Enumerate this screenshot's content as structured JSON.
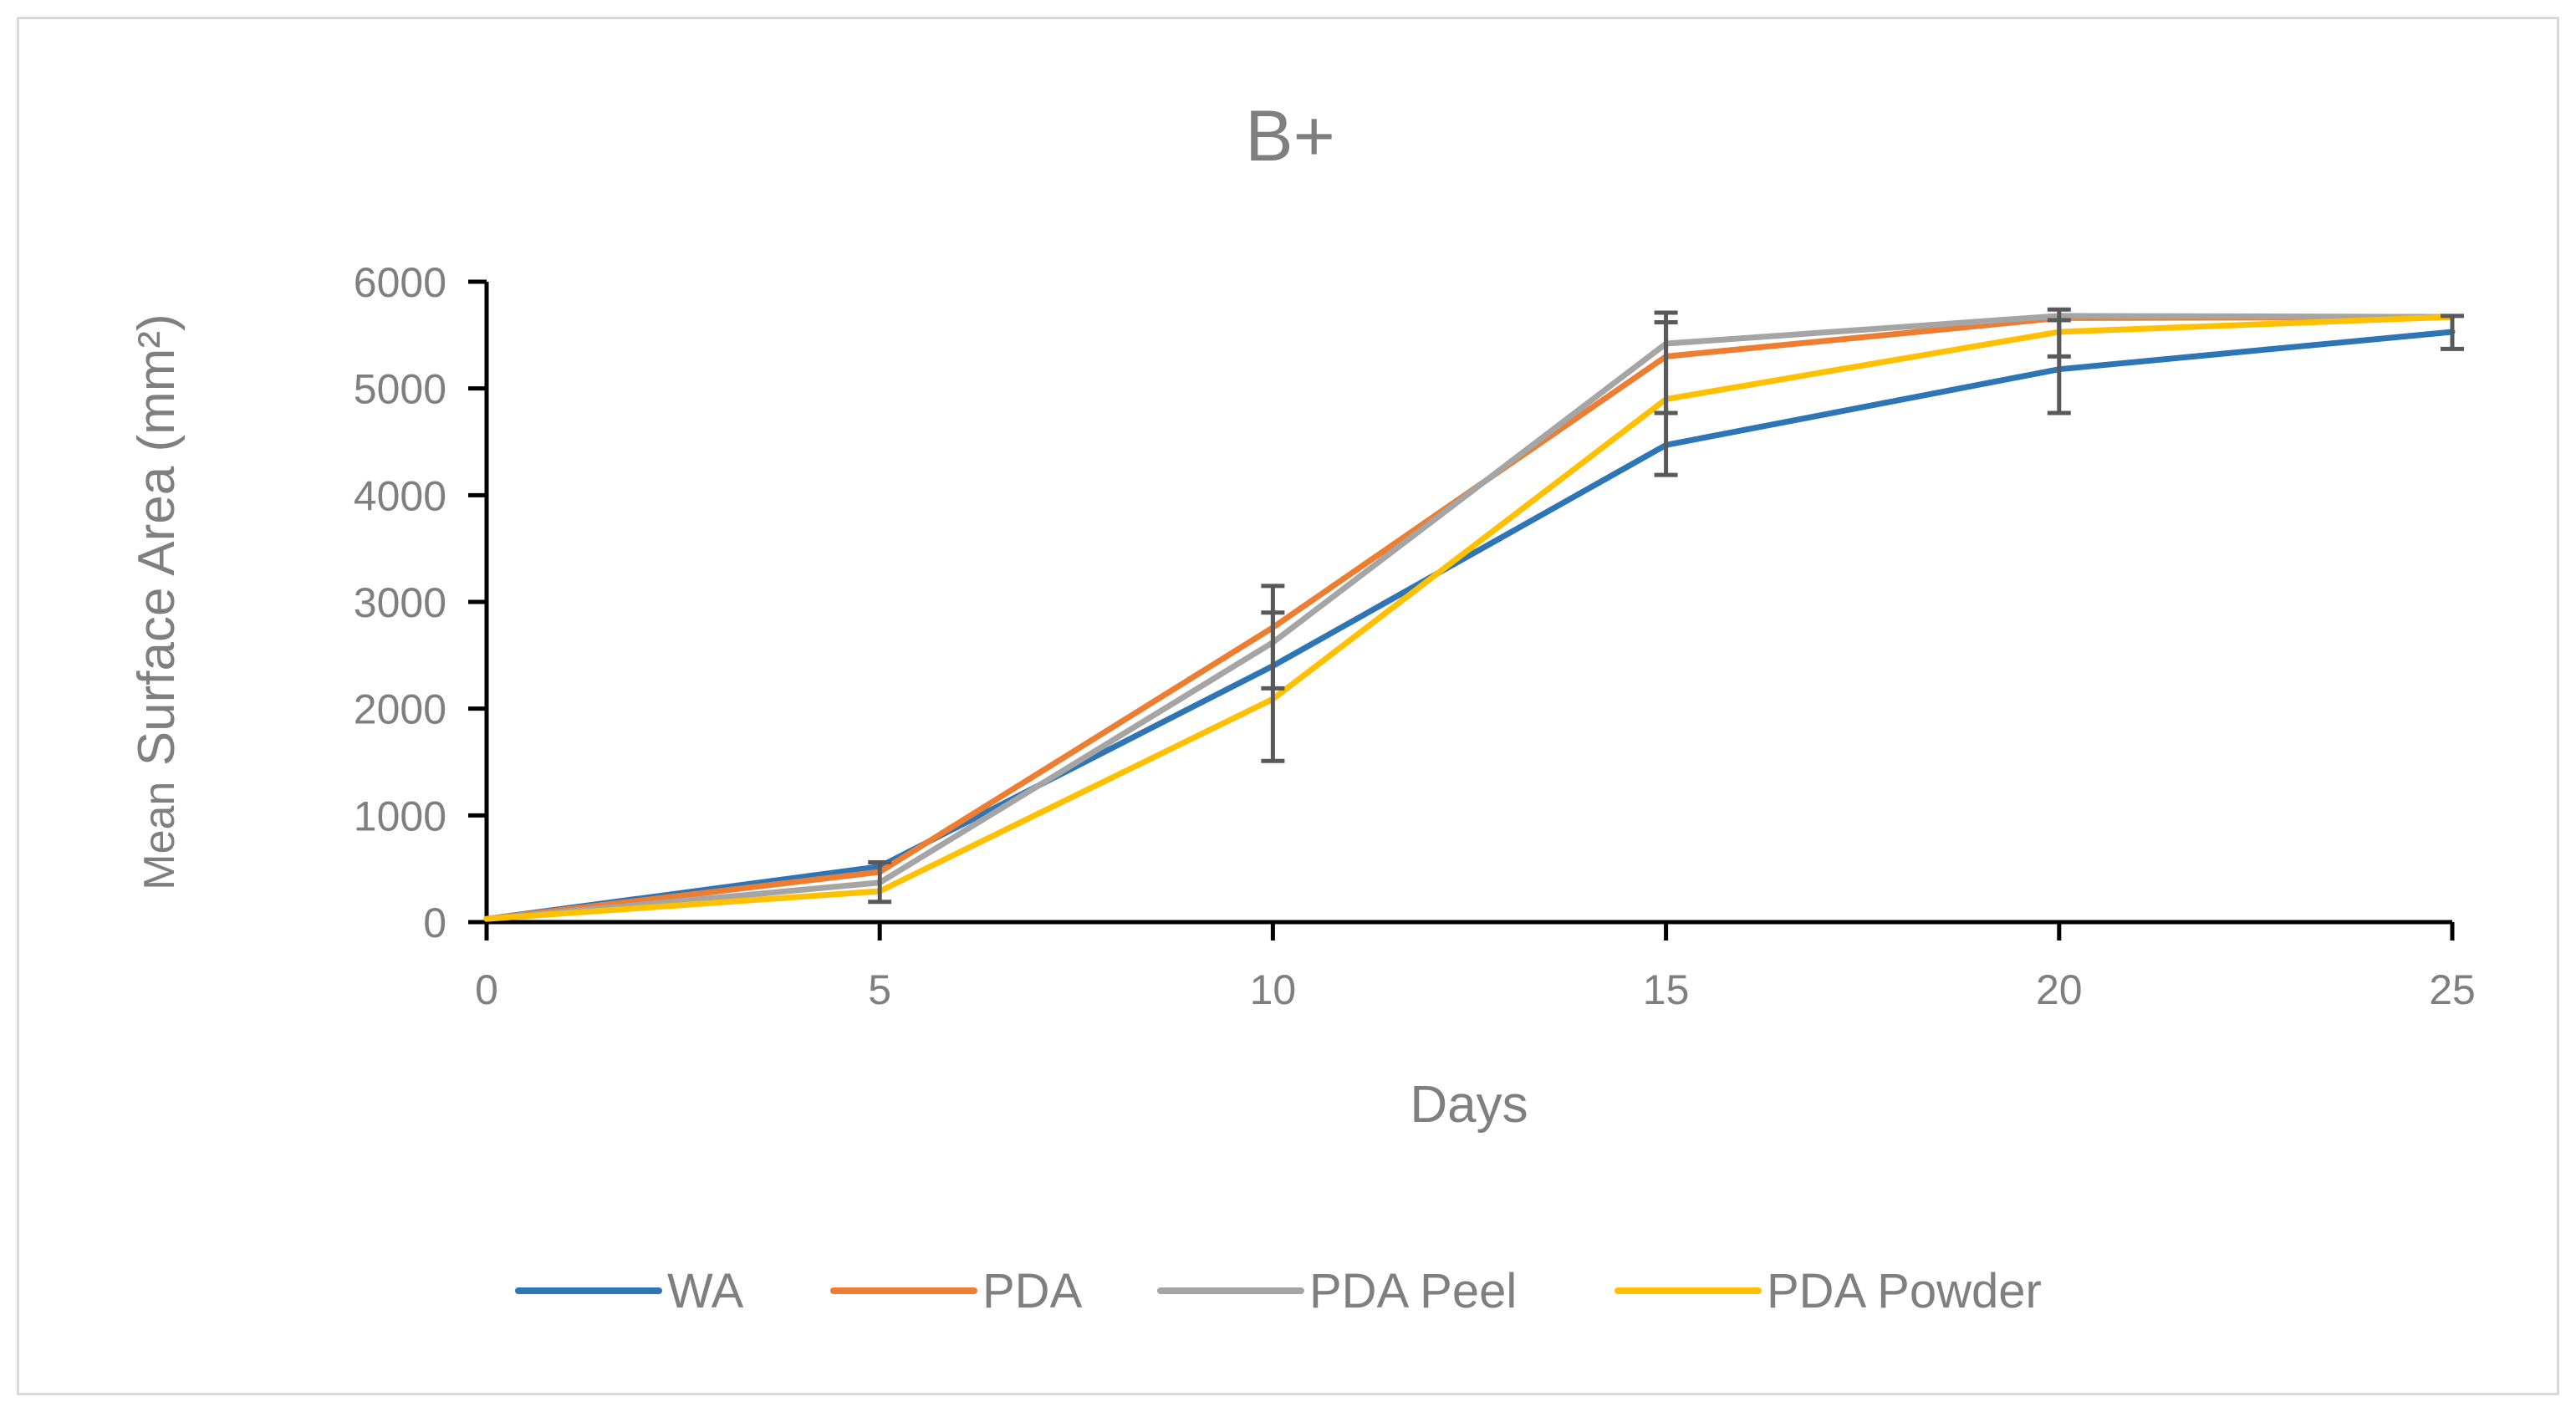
{
  "chart_data": {
    "type": "line",
    "title": "B+",
    "xlabel": "Days",
    "ylabel_prefix": "Mean",
    "ylabel_main": "Surface Area (mm²)",
    "x": [
      0,
      5,
      10,
      15,
      20,
      25
    ],
    "xlim": [
      0,
      25
    ],
    "ylim": [
      0,
      6000
    ],
    "xticks": [
      0,
      5,
      10,
      15,
      20,
      25
    ],
    "yticks": [
      0,
      1000,
      2000,
      3000,
      4000,
      5000,
      6000
    ],
    "grid": false,
    "legend_position": "bottom",
    "series": [
      {
        "name": "WA",
        "color": "#2e75b6",
        "values": [
          30,
          520,
          2400,
          4470,
          5180,
          5530
        ]
      },
      {
        "name": "PDA",
        "color": "#ed7d31",
        "values": [
          30,
          470,
          2760,
          5300,
          5660,
          5670
        ]
      },
      {
        "name": "PDA Peel",
        "color": "#a5a5a5",
        "values": [
          30,
          370,
          2620,
          5420,
          5680,
          5670
        ]
      },
      {
        "name": "PDA Powder",
        "color": "#ffc000",
        "values": [
          30,
          290,
          2090,
          4900,
          5530,
          5670
        ]
      }
    ],
    "error_bars": [
      {
        "x": 5,
        "low": 190,
        "high": 560
      },
      {
        "x": 10,
        "low": 1510,
        "high": 3150
      },
      {
        "x": 10,
        "low": 2190,
        "high": 2900
      },
      {
        "x": 15,
        "low": 4190,
        "high": 5710
      },
      {
        "x": 15,
        "low": 4770,
        "high": 5620
      },
      {
        "x": 20,
        "low": 4770,
        "high": 5740
      },
      {
        "x": 20,
        "low": 5300,
        "high": 5640
      },
      {
        "x": 25,
        "low": 5370,
        "high": 5680
      }
    ]
  }
}
